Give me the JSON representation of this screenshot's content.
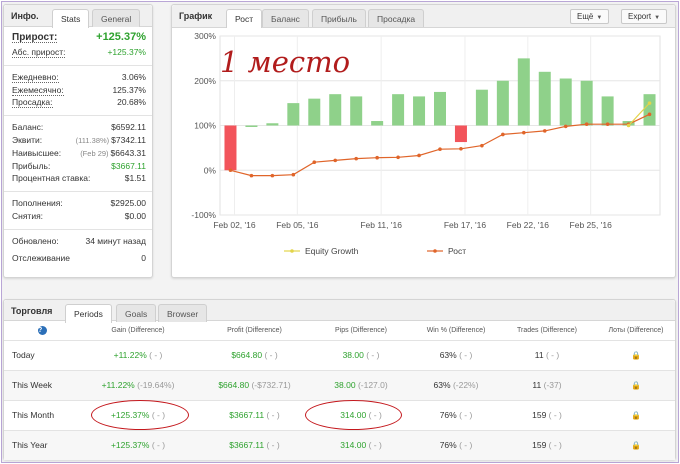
{
  "info": {
    "title": "Инфо.",
    "tabs": [
      "Stats",
      "General"
    ],
    "rows1": [
      {
        "label": "Прирост:",
        "value": "+125.37%"
      },
      {
        "label": "Абс. прирост:",
        "value": "+125.37%"
      }
    ],
    "rows2": [
      {
        "label": "Ежедневно:",
        "value": "3.06%"
      },
      {
        "label": "Ежемесячно:",
        "value": "125.37%"
      },
      {
        "label": "Просадка:",
        "value": "20.68%"
      }
    ],
    "rows3": [
      {
        "label": "Баланс:",
        "note": "",
        "value": "$6592.11"
      },
      {
        "label": "Эквити:",
        "note": "(111.38%)",
        "value": "$7342.11"
      },
      {
        "label": "Наивысшее:",
        "note": "(Feb 29)",
        "value": "$6643.31"
      },
      {
        "label": "Прибыль:",
        "note": "",
        "value": "$3667.11"
      },
      {
        "label": "Процентная ставка:",
        "note": "",
        "value": "$1.51"
      }
    ],
    "rows4": [
      {
        "label": "Пополнения:",
        "value": "$2925.00"
      },
      {
        "label": "Снятия:",
        "value": "$0.00"
      }
    ],
    "rows5": [
      {
        "label": "Обновлено:",
        "value": "34 минут назад"
      },
      {
        "label": "Отслеживание",
        "value": "0"
      }
    ]
  },
  "chart": {
    "title": "График",
    "tabs": [
      "Рост",
      "Баланс",
      "Прибыль",
      "Просадка"
    ],
    "menu_button": "Ещё",
    "export_button": "Export",
    "annotation": "1 место"
  },
  "chart_data": {
    "type": "bar+line",
    "y_ticks": [
      "300%",
      "200%",
      "100%",
      "0%",
      "-100%"
    ],
    "ylim": [
      -100,
      300
    ],
    "x_tick_labels": [
      "Feb 02, '16",
      "Feb 05, '16",
      "Feb 11, '16",
      "Feb 17, '16",
      "Feb 22, '16",
      "Feb 25, '16"
    ],
    "daily_change_bars": [
      -100,
      0,
      5,
      50,
      60,
      70,
      65,
      10,
      70,
      65,
      75,
      -37,
      80,
      100,
      150,
      120,
      105,
      100,
      65,
      10,
      70
    ],
    "series": [
      {
        "name": "Equity Growth",
        "color": "#e3d44a",
        "values": [
          null,
          null,
          null,
          null,
          null,
          null,
          null,
          null,
          null,
          null,
          null,
          null,
          null,
          null,
          null,
          null,
          null,
          null,
          null,
          100,
          150
        ]
      },
      {
        "name": "Рост",
        "color": "#e0652a",
        "values": [
          0,
          -12,
          -12,
          -10,
          18,
          22,
          26,
          28,
          29,
          33,
          47,
          48,
          55,
          80,
          84,
          88,
          98,
          103,
          103,
          103,
          125
        ]
      }
    ],
    "grid": true,
    "legend_position": "bottom"
  },
  "legend": {
    "equity": "Equity Growth",
    "growth": "Рост"
  },
  "trading": {
    "title": "Торговля",
    "tabs": [
      "Periods",
      "Goals",
      "Browser"
    ],
    "help_icon": "?",
    "columns": [
      "Gain (Difference)",
      "Profit (Difference)",
      "Pips (Difference)",
      "Win % (Difference)",
      "Trades (Difference)",
      "Лоты (Difference)"
    ],
    "rows": [
      {
        "label": "Today",
        "gain": "+11.22%",
        "gain_diff": "( - )",
        "profit": "$664.80",
        "profit_diff": "( - )",
        "pips": "38.00",
        "pips_diff": "( - )",
        "win": "63%",
        "win_diff": "( - )",
        "trades": "11",
        "trades_diff": "( - )"
      },
      {
        "label": "This Week",
        "gain": "+11.22%",
        "gain_diff": "(-19.64%)",
        "profit": "$664.80",
        "profit_diff": "(-$732.71)",
        "pips": "38.00",
        "pips_diff": "(-127.0)",
        "win": "63%",
        "win_diff": "(-22%)",
        "trades": "11",
        "trades_diff": "(-37)"
      },
      {
        "label": "This Month",
        "gain": "+125.37%",
        "gain_diff": "( - )",
        "profit": "$3667.11",
        "profit_diff": "( - )",
        "pips": "314.00",
        "pips_diff": "( - )",
        "win": "76%",
        "win_diff": "( - )",
        "trades": "159",
        "trades_diff": "( - )"
      },
      {
        "label": "This Year",
        "gain": "+125.37%",
        "gain_diff": "( - )",
        "profit": "$3667.11",
        "profit_diff": "( - )",
        "pips": "314.00",
        "pips_diff": "( - )",
        "win": "76%",
        "win_diff": "( - )",
        "trades": "159",
        "trades_diff": "( - )"
      }
    ]
  }
}
